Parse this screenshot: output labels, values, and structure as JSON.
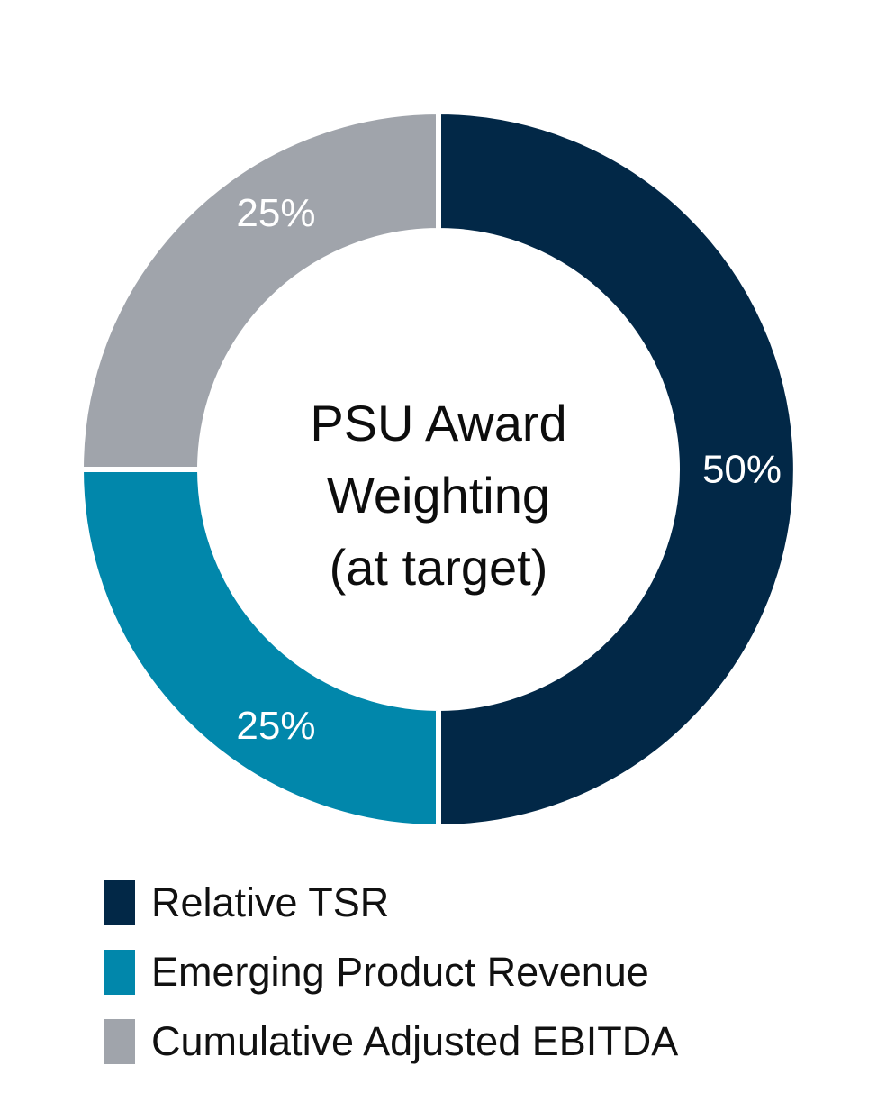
{
  "chart_data": {
    "type": "pie",
    "title": [
      "PSU Award",
      "Weighting",
      "(at target)"
    ],
    "slices": [
      {
        "name": "Relative TSR",
        "value": 50,
        "label": "50%",
        "color": "#022847"
      },
      {
        "name": "Emerging Product Revenue",
        "value": 25,
        "label": "25%",
        "color": "#0187ab"
      },
      {
        "name": "Cumulative Adjusted EBITDA",
        "value": 25,
        "label": "25%",
        "color": "#a0a4ab"
      }
    ],
    "legend_position": "bottom-left",
    "donut": true
  }
}
